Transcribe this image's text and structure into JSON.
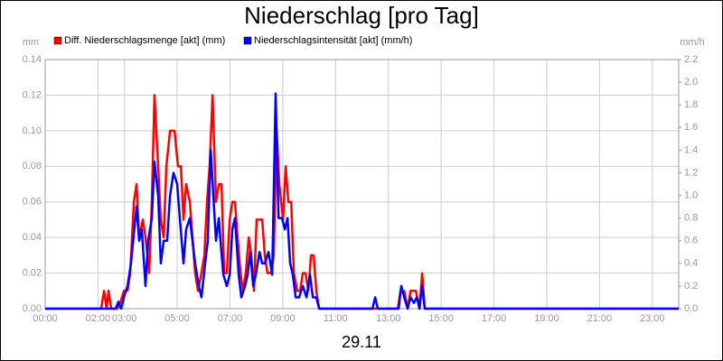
{
  "chart_data": {
    "type": "line",
    "title": "Niederschlag [pro Tag]",
    "xlabel": "29.11",
    "ylabel": "mm",
    "y2label": "mm/h",
    "grid": true,
    "legend": "top",
    "xlim": [
      0,
      24
    ],
    "xticks": [
      {
        "value": 0,
        "label": "00:00"
      },
      {
        "value": 2,
        "label": "02:00"
      },
      {
        "value": 3,
        "label": "03:00"
      },
      {
        "value": 5,
        "label": "05:00"
      },
      {
        "value": 7,
        "label": "07:00"
      },
      {
        "value": 9,
        "label": "09:00"
      },
      {
        "value": 11,
        "label": "11:00"
      },
      {
        "value": 13,
        "label": "13:00"
      },
      {
        "value": 15,
        "label": "15:00"
      },
      {
        "value": 17,
        "label": "17:00"
      },
      {
        "value": 19,
        "label": "19:00"
      },
      {
        "value": 21,
        "label": "21:00"
      },
      {
        "value": 23,
        "label": "23:00"
      }
    ],
    "ylim": [
      0,
      0.14
    ],
    "yticks": [
      {
        "value": 0,
        "label": "0.00"
      },
      0.02,
      0.04,
      0.06,
      0.08,
      {
        "value": 0.1,
        "label": "0.10"
      },
      0.12,
      0.14
    ],
    "y2lim": [
      0,
      2.2
    ],
    "y2ticks": [
      {
        "value": 0,
        "label": "0.0"
      },
      0.2,
      0.4,
      0.6,
      0.8,
      {
        "value": 1,
        "label": "1.0"
      },
      1.2,
      1.4,
      1.6,
      1.8,
      {
        "value": 2,
        "label": "2.0"
      },
      2.2
    ],
    "series": [
      {
        "name": "Diff. Niederschlagsmenge [akt] (mm)",
        "color": "#ff0000",
        "x": [
          0,
          2.12,
          2.23,
          2.33,
          2.4,
          2.5,
          2.74,
          2.88,
          2.98,
          3.12,
          3.22,
          3.36,
          3.46,
          3.56,
          3.7,
          3.8,
          3.94,
          4.04,
          4.14,
          4.28,
          4.38,
          4.49,
          4.59,
          4.73,
          4.9,
          5.03,
          5.14,
          5.24,
          5.34,
          5.48,
          5.58,
          5.68,
          5.79,
          5.92,
          6.03,
          6.13,
          6.23,
          6.34,
          6.47,
          6.58,
          6.68,
          6.78,
          6.88,
          6.99,
          7.09,
          7.19,
          7.29,
          7.4,
          7.5,
          7.6,
          7.71,
          7.81,
          7.91,
          8.01,
          8.22,
          8.32,
          8.42,
          8.56,
          8.66,
          8.77,
          8.87,
          9.01,
          9.11,
          9.21,
          9.32,
          9.42,
          9.55,
          9.66,
          9.76,
          9.86,
          9.97,
          10.07,
          10.17,
          10.27,
          10.38,
          13.36,
          13.46,
          13.6,
          13.73,
          13.84,
          14.04,
          14.18,
          14.28,
          14.38,
          24
        ],
        "values": [
          0,
          0,
          0.01,
          0,
          0.01,
          0,
          0,
          0.005,
          0.01,
          0.01,
          0.02,
          0.06,
          0.07,
          0.04,
          0.05,
          0.04,
          0.02,
          0.06,
          0.12,
          0.08,
          0.05,
          0.04,
          0.08,
          0.1,
          0.1,
          0.08,
          0.08,
          0.05,
          0.07,
          0.06,
          0.04,
          0.02,
          0.01,
          0.02,
          0.03,
          0.06,
          0.08,
          0.12,
          0.06,
          0.07,
          0.07,
          0.02,
          0.02,
          0.05,
          0.06,
          0.06,
          0.04,
          0.02,
          0.01,
          0.02,
          0.04,
          0.03,
          0.01,
          0.05,
          0.05,
          0.03,
          0.02,
          0.02,
          0.03,
          0.1,
          0.07,
          0.05,
          0.08,
          0.06,
          0.06,
          0.02,
          0.01,
          0.01,
          0.02,
          0.02,
          0.01,
          0.03,
          0.03,
          0.01,
          0,
          0,
          0.01,
          0.01,
          0,
          0.01,
          0.01,
          0,
          0.02,
          0,
          0
        ]
      },
      {
        "name": "Niederschlagsintensität [akt] (mm/h)",
        "color": "#0000ff",
        "axis": "y2",
        "x": [
          0,
          2.67,
          2.77,
          2.88,
          2.98,
          3.12,
          3.25,
          3.46,
          3.56,
          3.66,
          3.8,
          3.9,
          4.04,
          4.14,
          4.28,
          4.38,
          4.49,
          4.62,
          4.73,
          4.86,
          5.0,
          5.1,
          5.24,
          5.34,
          5.48,
          5.58,
          5.68,
          5.82,
          5.92,
          6.06,
          6.16,
          6.27,
          6.37,
          6.47,
          6.58,
          6.64,
          6.75,
          6.88,
          6.99,
          7.09,
          7.19,
          7.33,
          7.43,
          7.57,
          7.67,
          7.77,
          7.88,
          7.98,
          8.12,
          8.22,
          8.32,
          8.46,
          8.6,
          8.73,
          8.84,
          8.97,
          9.08,
          9.18,
          9.28,
          9.38,
          9.49,
          9.62,
          9.76,
          9.9,
          10.03,
          10.14,
          10.27,
          10.38,
          12.4,
          12.5,
          12.6,
          13.39,
          13.49,
          13.6,
          13.73,
          13.84,
          13.97,
          14.08,
          14.18,
          14.28,
          14.38,
          24
        ],
        "values": [
          0,
          0,
          0.06,
          0,
          0.1,
          0.2,
          0.4,
          0.9,
          0.6,
          0.7,
          0.2,
          0.6,
          0.8,
          1.3,
          1.0,
          0.4,
          0.6,
          0.6,
          1.0,
          1.2,
          1.1,
          0.8,
          0.4,
          0.7,
          0.8,
          0.6,
          0.4,
          0.2,
          0.1,
          0.4,
          0.6,
          1.4,
          1.0,
          0.6,
          0.8,
          0.6,
          0.3,
          0.2,
          0.3,
          0.7,
          0.8,
          0.3,
          0.1,
          0.2,
          0.3,
          0.5,
          0.2,
          0.3,
          0.5,
          0.4,
          0.4,
          0.5,
          0.3,
          1.9,
          0.8,
          0.8,
          0.7,
          0.8,
          0.4,
          0.3,
          0.1,
          0.1,
          0.2,
          0.1,
          0.3,
          0.1,
          0.1,
          0,
          0,
          0.1,
          0,
          0,
          0.2,
          0.1,
          0,
          0.1,
          0.05,
          0.1,
          0,
          0.2,
          0,
          0
        ]
      }
    ]
  }
}
